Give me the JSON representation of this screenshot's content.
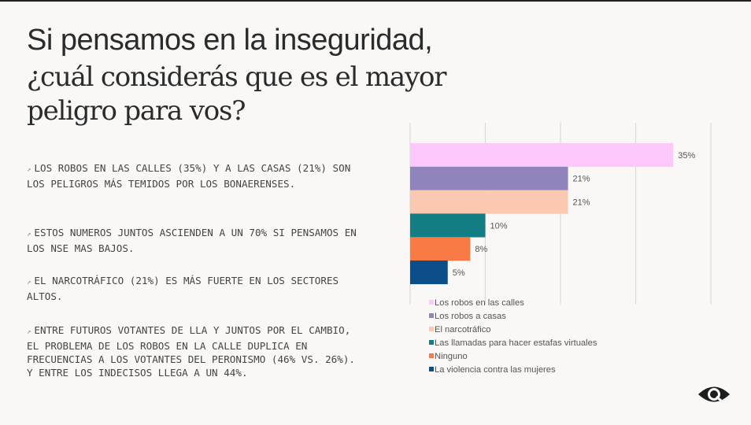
{
  "title": {
    "line1": "Si pensamos en la inseguridad,",
    "line2": "¿cuál considerás que es el mayor peligro para vos?"
  },
  "bullets": [
    "LOS ROBOS EN LAS CALLES (35%) Y A LAS CASAS (21%) SON LOS PELIGROS MÁS TEMIDOS POR LOS BONAERENSES.",
    "ESTOS NUMEROS JUNTOS ASCIENDEN A UN 70% SI PENSAMOS EN LOS NSE MAS BAJOS.",
    "EL NARCOTRÁFICO (21%) ES MÁS FUERTE EN LOS SECTORES ALTOS.",
    "ENTRE FUTUROS VOTANTES DE LLA Y JUNTOS POR EL CAMBIO, EL PROBLEMA DE LOS ROBOS EN LA CALLE DUPLICA EN FRECUENCIAS A LOS VOTANTES DEL PERONISMO (46% VS. 26%). Y ENTRE LOS INDECISOS LLEGA A UN 44%."
  ],
  "bullet_icon": "arrow-up-right-icon",
  "corner_icon": "eye-icon",
  "chart_data": {
    "type": "bar",
    "orientation": "horizontal",
    "categories": [
      "Los robos en las calles",
      "Los robos a casas",
      "El narcotráfico",
      "Las llamadas para hacer estafas virtuales",
      "Ninguno",
      "La violencia contra las mujeres"
    ],
    "values": [
      35,
      21,
      21,
      10,
      8,
      5
    ],
    "labels": [
      "35%",
      "21%",
      "21%",
      "10%",
      "8%",
      "5%"
    ],
    "colors": [
      "#fdc9fb",
      "#8f84bb",
      "#fbc8b2",
      "#127e84",
      "#f97a45",
      "#0d4d8a"
    ],
    "xlim": [
      0,
      40
    ],
    "grid": true,
    "legend": "bottom"
  }
}
